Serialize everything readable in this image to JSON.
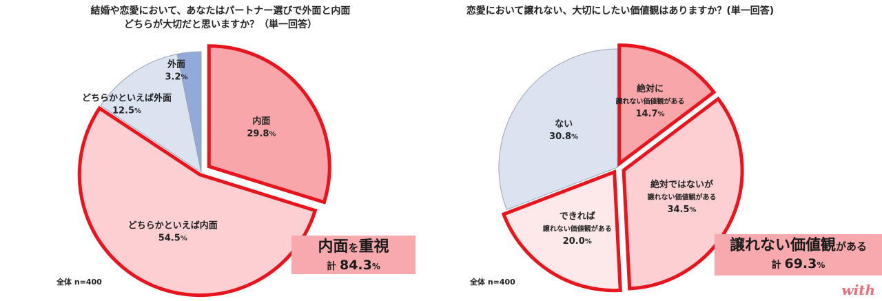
{
  "chart_data": [
    {
      "type": "pie",
      "title_lines": [
        "結婚や恋愛において、あなたはパートナー選びで外面と内面",
        "どちらが大切だと思いますか？（単一回答）"
      ],
      "slices": [
        {
          "label": "内面",
          "value": 29.8,
          "value_text": "29.8",
          "color": "#f9a6aa",
          "highlight": true
        },
        {
          "label": "どちらかといえば内面",
          "value": 54.5,
          "value_text": "54.5",
          "color": "#fcd0d2",
          "highlight": true
        },
        {
          "label": "どちらかといえば外面",
          "value": 12.5,
          "value_text": "12.5",
          "color": "#dbe2f0",
          "highlight": false
        },
        {
          "label": "外面",
          "value": 3.2,
          "value_text": "3.2",
          "color": "#92a9d9",
          "highlight": false
        }
      ],
      "callout": {
        "main": "内面",
        "particle": "を",
        "main2": "重視",
        "sub_prefix": "計",
        "sub_value": "84.3",
        "sub_unit": "%"
      },
      "sample": "全体 n=400"
    },
    {
      "type": "pie",
      "title_lines": [
        "恋愛において譲れない、大切にしたい価値観はありますか？(単一回答)"
      ],
      "slices": [
        {
          "label": "絶対に",
          "label2": "譲れない価値観がある",
          "value": 14.7,
          "value_text": "14.7",
          "color": "#f9a6aa",
          "highlight": true
        },
        {
          "label": "絶対ではないが",
          "label2": "譲れない価値観がある",
          "value": 34.5,
          "value_text": "34.5",
          "color": "#fcd0d2",
          "highlight": true
        },
        {
          "label": "できれば",
          "label2": "譲れない価値観がある",
          "value": 20.0,
          "value_text": "20.0",
          "color": "#fde9ea",
          "highlight": true
        },
        {
          "label": "ない",
          "value": 30.8,
          "value_text": "30.8",
          "color": "#dbe2f0",
          "highlight": false
        }
      ],
      "callout": {
        "main": "譲れない価値観",
        "particle": "がある",
        "sub_prefix": "計",
        "sub_value": "69.3",
        "sub_unit": "%"
      },
      "sample": "全体 n=400"
    }
  ],
  "pct_unit": "%",
  "logo": "with",
  "colors": {
    "highlight_border": "#e8141e",
    "slice_border": "#9aa3b3"
  }
}
